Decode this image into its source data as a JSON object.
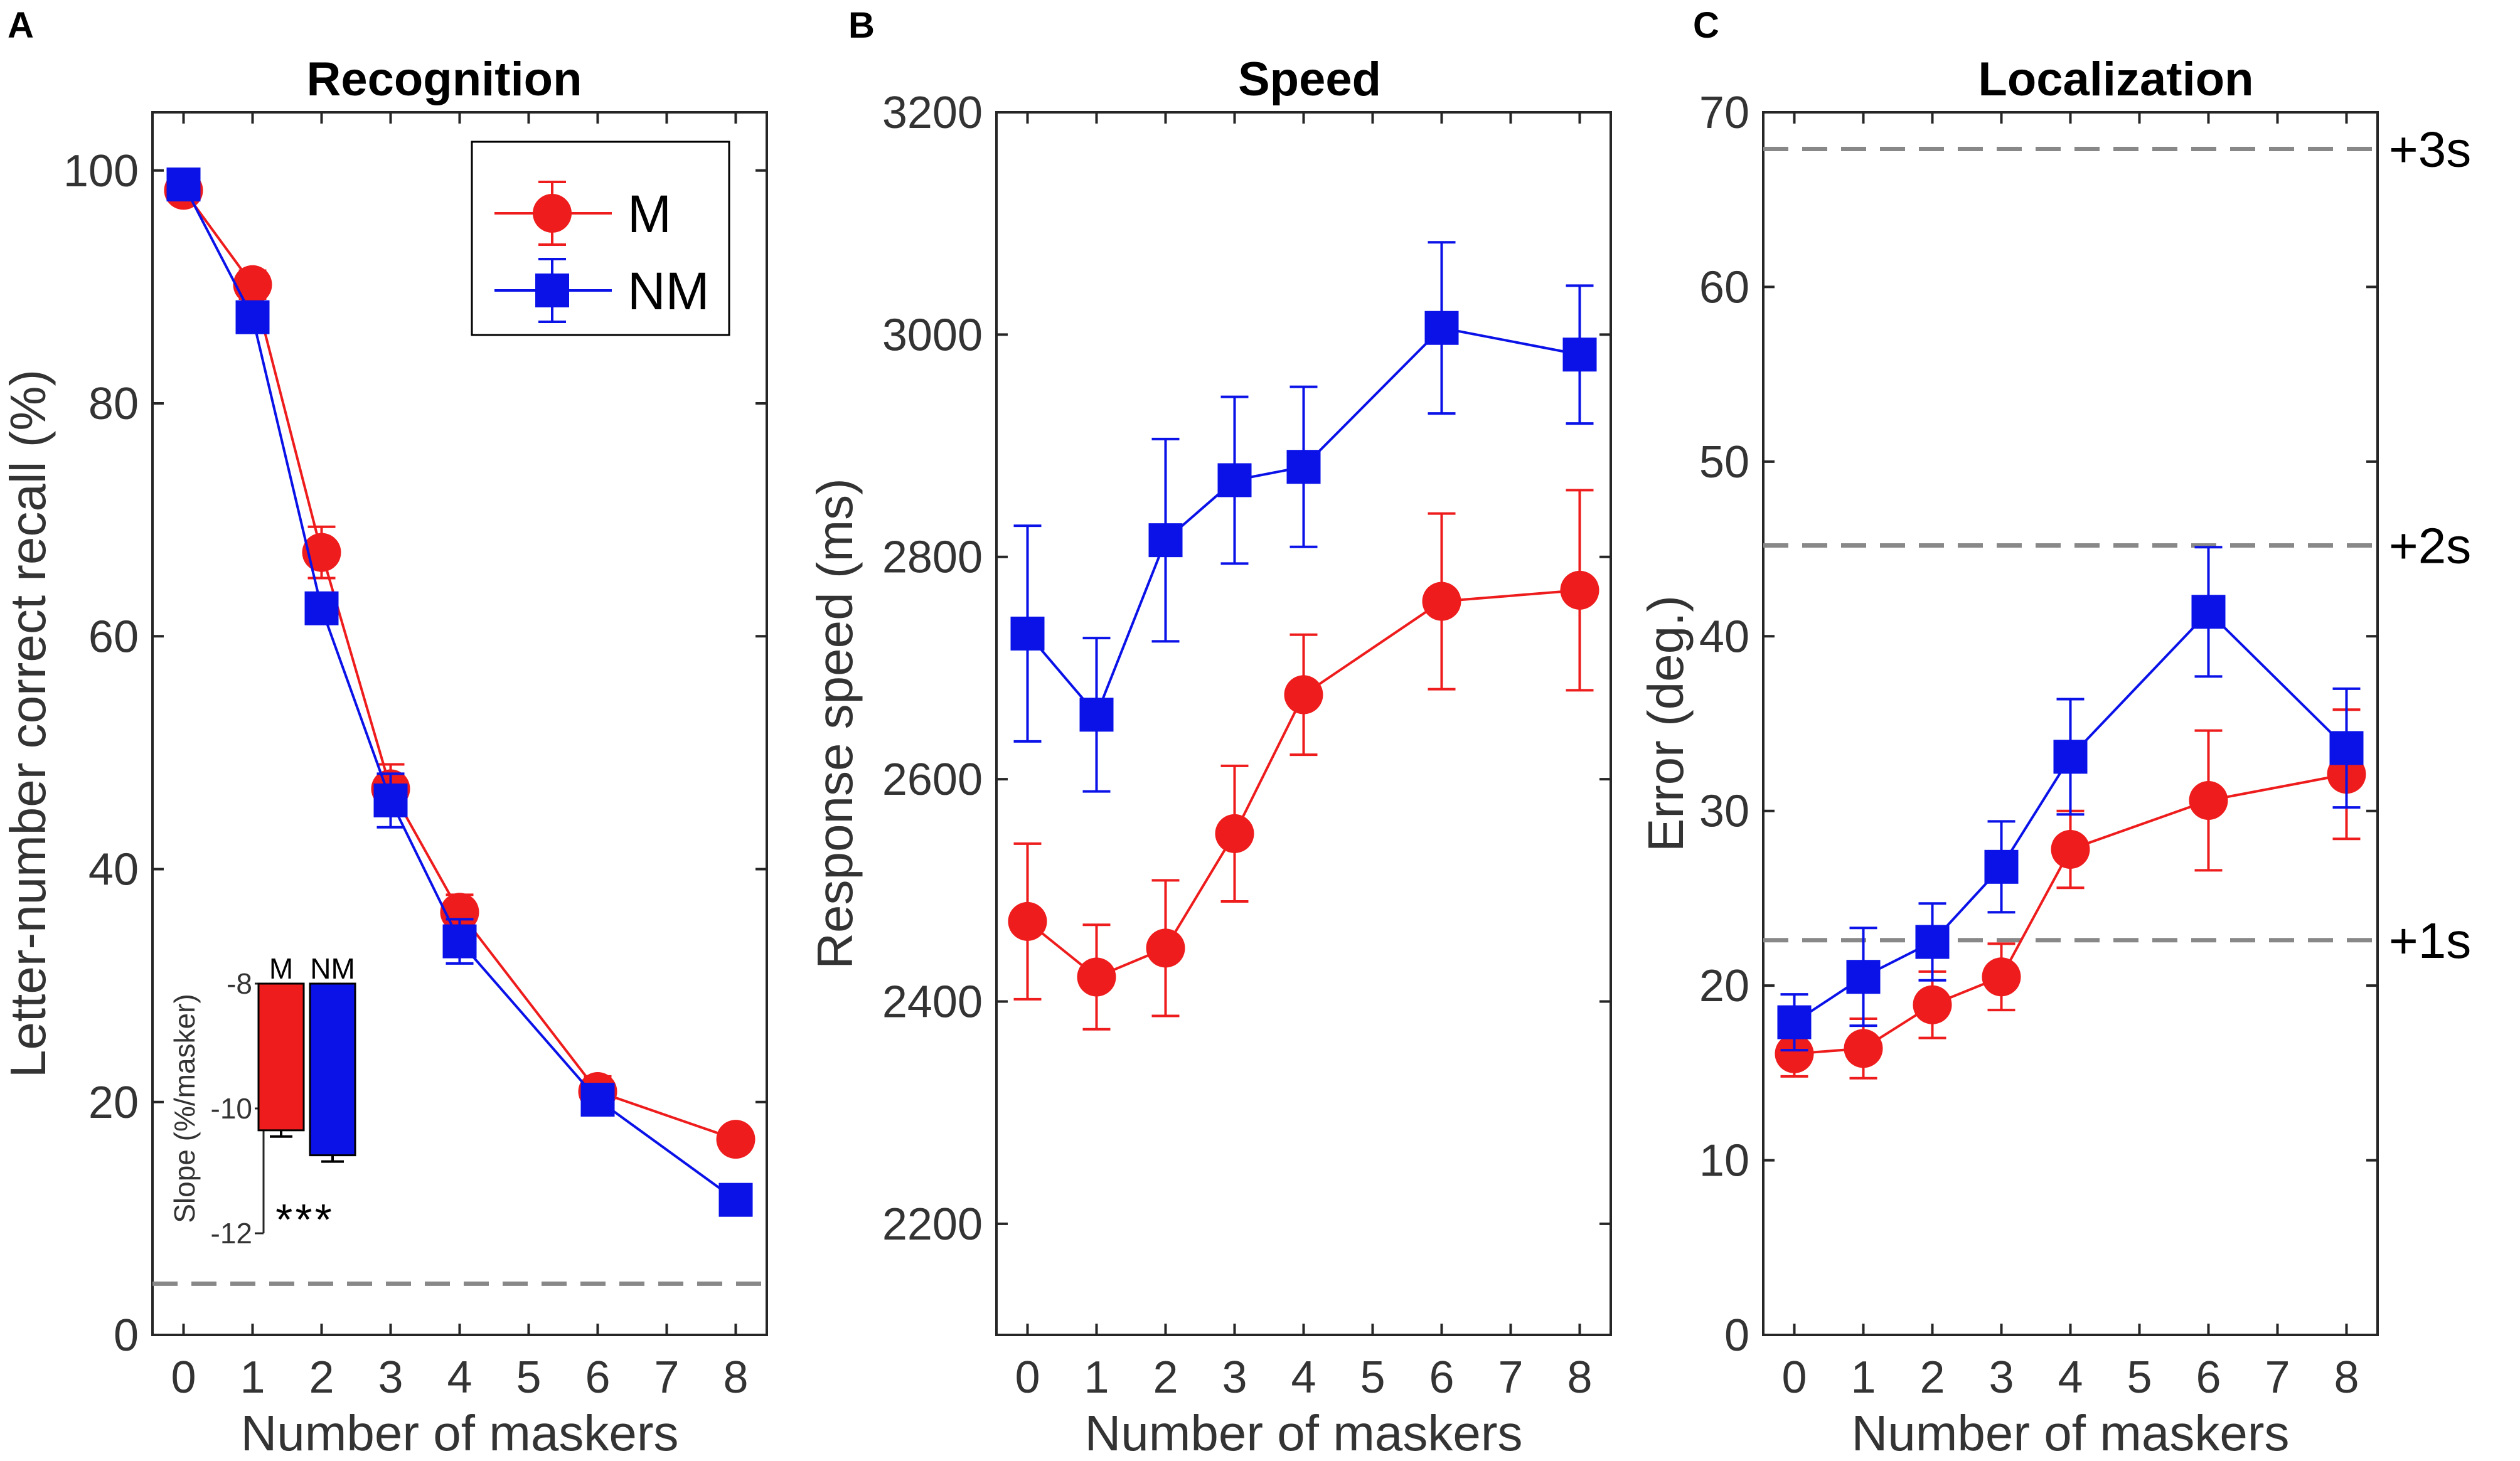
{
  "colors": {
    "M": "#ee1c1c",
    "NM": "#0a12e8",
    "ref_line": "#888888",
    "axis": "#262626"
  },
  "chart_data": [
    {
      "panel": "A",
      "type": "line",
      "title": "Recognition",
      "xlabel": "Number of maskers",
      "ylabel": "Letter-number correct recall (%)",
      "x_ticks": [
        0,
        1,
        2,
        3,
        4,
        5,
        6,
        7,
        8
      ],
      "y_ticks": [
        0,
        20,
        40,
        60,
        80,
        100
      ],
      "xlim": [
        -0.45,
        8.45
      ],
      "ylim": [
        0,
        105
      ],
      "x": [
        0,
        1,
        2,
        3,
        4,
        6,
        8
      ],
      "series": [
        {
          "name": "M",
          "marker": "circle",
          "values": [
            98.3,
            90.2,
            67.2,
            46.9,
            36.3,
            20.9,
            16.8
          ],
          "errors": [
            1.0,
            1.2,
            2.2,
            2.1,
            1.5,
            1.3,
            0.8
          ]
        },
        {
          "name": "NM",
          "marker": "square",
          "values": [
            98.8,
            87.4,
            62.4,
            45.9,
            33.8,
            20.2,
            11.6
          ],
          "errors": [
            1.0,
            1.3,
            1.2,
            2.3,
            1.9,
            1.3,
            0.9
          ]
        }
      ],
      "chance_level": 4.4,
      "legend": {
        "entries": [
          "M",
          "NM"
        ],
        "position": "top-right"
      },
      "inset": {
        "type": "bar",
        "ylabel": "Slope (%/masker)",
        "y_ticks": [
          -8,
          -10,
          -12
        ],
        "ylim": [
          -12,
          -8
        ],
        "categories": [
          "M",
          "NM"
        ],
        "values": [
          -10.35,
          -10.75
        ],
        "errors": [
          0.1,
          0.1
        ],
        "significance": "***"
      }
    },
    {
      "panel": "B",
      "type": "line",
      "title": "Speed",
      "xlabel": "Number of maskers",
      "ylabel": "Response speed (ms)",
      "x_ticks": [
        0,
        1,
        2,
        3,
        4,
        5,
        6,
        7,
        8
      ],
      "y_ticks": [
        2200,
        2400,
        2600,
        2800,
        3000,
        3200
      ],
      "xlim": [
        -0.45,
        8.45
      ],
      "ylim": [
        2100,
        3200
      ],
      "x": [
        0,
        1,
        2,
        3,
        4,
        6,
        8
      ],
      "series": [
        {
          "name": "M",
          "marker": "circle",
          "values": [
            2472,
            2422,
            2448,
            2551,
            2676,
            2760,
            2770
          ],
          "errors": [
            70,
            47,
            61,
            61,
            54,
            79,
            90
          ]
        },
        {
          "name": "NM",
          "marker": "square",
          "values": [
            2731,
            2658,
            2815,
            2869,
            2881,
            3006,
            2982
          ],
          "errors": [
            97,
            69,
            91,
            75,
            72,
            77,
            62
          ]
        }
      ]
    },
    {
      "panel": "C",
      "type": "line",
      "title": "Localization",
      "xlabel": "Number of maskers",
      "ylabel": "Error (deg.)",
      "x_ticks": [
        0,
        1,
        2,
        3,
        4,
        5,
        6,
        7,
        8
      ],
      "y_ticks": [
        0,
        10,
        20,
        30,
        40,
        50,
        60,
        70
      ],
      "xlim": [
        -0.45,
        8.45
      ],
      "ylim": [
        0,
        70
      ],
      "x": [
        0,
        1,
        2,
        3,
        4,
        6,
        8
      ],
      "series": [
        {
          "name": "M",
          "marker": "circle",
          "values": [
            16.1,
            16.4,
            18.9,
            20.5,
            27.8,
            30.6,
            32.1
          ],
          "errors": [
            1.3,
            1.7,
            1.9,
            1.9,
            2.2,
            4.0,
            3.7
          ]
        },
        {
          "name": "NM",
          "marker": "square",
          "values": [
            17.9,
            20.5,
            22.5,
            26.8,
            33.1,
            41.4,
            33.6
          ],
          "errors": [
            1.6,
            2.8,
            2.2,
            2.6,
            3.3,
            3.7,
            3.4
          ]
        }
      ],
      "reference_lines": [
        {
          "label": "+1s",
          "value": 22.6
        },
        {
          "label": "+2s",
          "value": 45.2
        },
        {
          "label": "+3s",
          "value": 67.9
        }
      ]
    }
  ]
}
